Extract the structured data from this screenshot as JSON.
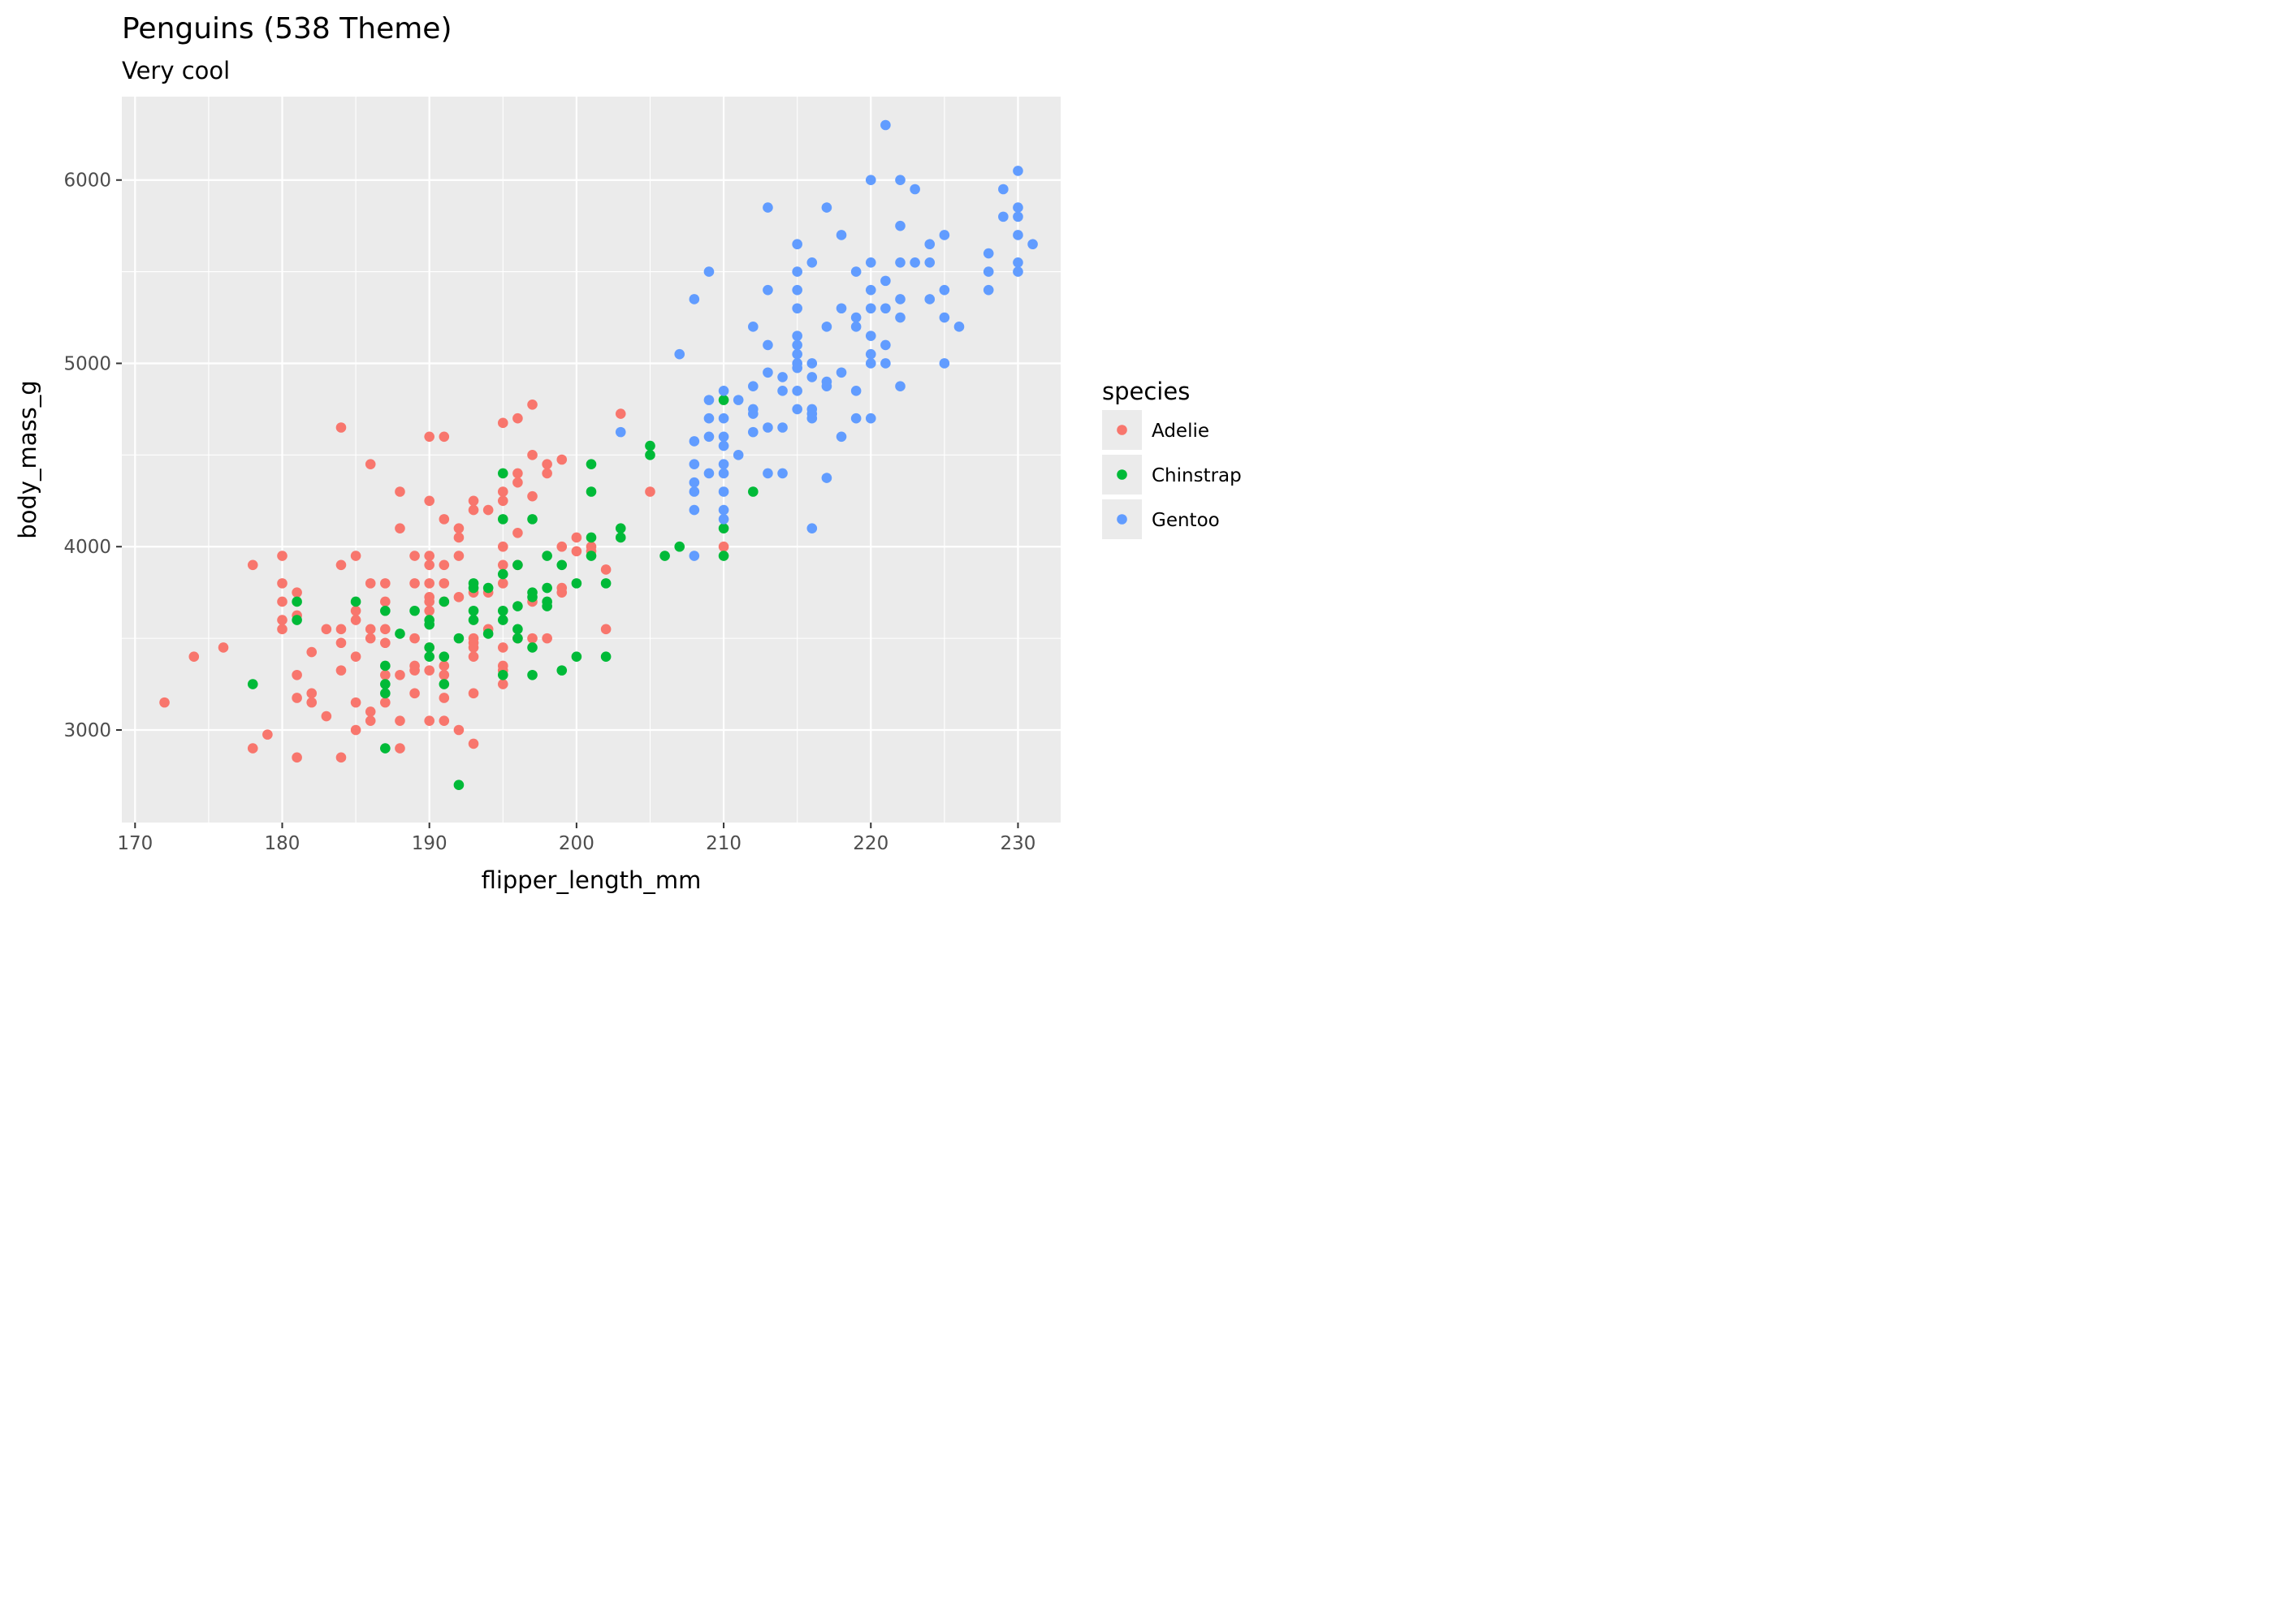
{
  "title": "Penguins (538 Theme)",
  "subtitle": "Very cool",
  "chart_data": {
    "type": "scatter",
    "title": "Penguins (538 Theme)",
    "subtitle": "Very cool",
    "xlabel": "flipper_length_mm",
    "ylabel": "body_mass_g",
    "xlim": [
      169.1,
      232.9
    ],
    "ylim": [
      2495,
      6455
    ],
    "xticks": [
      170,
      180,
      190,
      200,
      210,
      220,
      230
    ],
    "yticks": [
      3000,
      4000,
      5000,
      6000
    ],
    "x_minor_ticks": [
      175,
      185,
      195,
      205,
      215,
      225
    ],
    "y_minor_ticks": [
      3500,
      4500,
      5500
    ],
    "grid": true,
    "legend": {
      "title": "species",
      "position": "right"
    },
    "series": [
      {
        "name": "Adelie",
        "color": "#F8766D",
        "points": [
          [
            172,
            3150
          ],
          [
            174,
            3400
          ],
          [
            176,
            3450
          ],
          [
            178,
            3900
          ],
          [
            178,
            2900
          ],
          [
            179,
            2975
          ],
          [
            180,
            3950
          ],
          [
            180,
            3800
          ],
          [
            180,
            3700
          ],
          [
            180,
            3600
          ],
          [
            180,
            3550
          ],
          [
            181,
            3750
          ],
          [
            181,
            3625
          ],
          [
            181,
            3300
          ],
          [
            181,
            3175
          ],
          [
            181,
            2850
          ],
          [
            182,
            3425
          ],
          [
            182,
            3200
          ],
          [
            182,
            3150
          ],
          [
            183,
            3550
          ],
          [
            183,
            3075
          ],
          [
            184,
            4650
          ],
          [
            184,
            3900
          ],
          [
            184,
            3550
          ],
          [
            184,
            3475
          ],
          [
            184,
            3325
          ],
          [
            184,
            2850
          ],
          [
            185,
            3950
          ],
          [
            185,
            3650
          ],
          [
            185,
            3600
          ],
          [
            185,
            3400
          ],
          [
            185,
            3150
          ],
          [
            185,
            3000
          ],
          [
            186,
            4450
          ],
          [
            186,
            3800
          ],
          [
            186,
            3550
          ],
          [
            186,
            3500
          ],
          [
            186,
            3100
          ],
          [
            186,
            3050
          ],
          [
            187,
            3800
          ],
          [
            187,
            3700
          ],
          [
            187,
            3550
          ],
          [
            187,
            3475
          ],
          [
            187,
            3300
          ],
          [
            187,
            3150
          ],
          [
            188,
            4300
          ],
          [
            188,
            4100
          ],
          [
            188,
            3300
          ],
          [
            188,
            3050
          ],
          [
            188,
            2900
          ],
          [
            189,
            3950
          ],
          [
            189,
            3800
          ],
          [
            189,
            3500
          ],
          [
            189,
            3350
          ],
          [
            189,
            3325
          ],
          [
            189,
            3200
          ],
          [
            190,
            4600
          ],
          [
            190,
            4250
          ],
          [
            190,
            3950
          ],
          [
            190,
            3900
          ],
          [
            190,
            3800
          ],
          [
            190,
            3725
          ],
          [
            190,
            3700
          ],
          [
            190,
            3650
          ],
          [
            190,
            3450
          ],
          [
            190,
            3325
          ],
          [
            190,
            3050
          ],
          [
            191,
            4600
          ],
          [
            191,
            4150
          ],
          [
            191,
            3900
          ],
          [
            191,
            3800
          ],
          [
            191,
            3700
          ],
          [
            191,
            3350
          ],
          [
            191,
            3300
          ],
          [
            191,
            3175
          ],
          [
            191,
            3050
          ],
          [
            192,
            4100
          ],
          [
            192,
            4050
          ],
          [
            192,
            3950
          ],
          [
            192,
            3725
          ],
          [
            192,
            3000
          ],
          [
            193,
            4250
          ],
          [
            193,
            4200
          ],
          [
            193,
            3750
          ],
          [
            193,
            3500
          ],
          [
            193,
            3475
          ],
          [
            193,
            3450
          ],
          [
            193,
            3400
          ],
          [
            193,
            3200
          ],
          [
            193,
            2925
          ],
          [
            194,
            4200
          ],
          [
            194,
            3750
          ],
          [
            194,
            3550
          ],
          [
            195,
            4675
          ],
          [
            195,
            4300
          ],
          [
            195,
            4250
          ],
          [
            195,
            4000
          ],
          [
            195,
            3900
          ],
          [
            195,
            3800
          ],
          [
            195,
            3450
          ],
          [
            195,
            3350
          ],
          [
            195,
            3325
          ],
          [
            195,
            3250
          ],
          [
            196,
            4700
          ],
          [
            196,
            4400
          ],
          [
            196,
            4350
          ],
          [
            196,
            4075
          ],
          [
            196,
            3900
          ],
          [
            196,
            3500
          ],
          [
            197,
            4775
          ],
          [
            197,
            4500
          ],
          [
            197,
            4275
          ],
          [
            197,
            3700
          ],
          [
            197,
            3500
          ],
          [
            198,
            4450
          ],
          [
            198,
            4400
          ],
          [
            198,
            3500
          ],
          [
            199,
            4475
          ],
          [
            199,
            4000
          ],
          [
            199,
            3775
          ],
          [
            199,
            3750
          ],
          [
            200,
            4050
          ],
          [
            200,
            3975
          ],
          [
            201,
            4000
          ],
          [
            201,
            3975
          ],
          [
            202,
            3875
          ],
          [
            202,
            3550
          ],
          [
            203,
            4725
          ],
          [
            205,
            4300
          ],
          [
            210,
            4000
          ]
        ]
      },
      {
        "name": "Chinstrap",
        "color": "#00BA38",
        "points": [
          [
            178,
            3250
          ],
          [
            181,
            3700
          ],
          [
            181,
            3600
          ],
          [
            185,
            3700
          ],
          [
            187,
            3650
          ],
          [
            187,
            3350
          ],
          [
            187,
            3250
          ],
          [
            187,
            3200
          ],
          [
            187,
            2900
          ],
          [
            188,
            3525
          ],
          [
            189,
            3650
          ],
          [
            190,
            3600
          ],
          [
            190,
            3575
          ],
          [
            190,
            3450
          ],
          [
            190,
            3400
          ],
          [
            191,
            3700
          ],
          [
            191,
            3400
          ],
          [
            191,
            3250
          ],
          [
            192,
            3500
          ],
          [
            192,
            2700
          ],
          [
            193,
            3800
          ],
          [
            193,
            3775
          ],
          [
            193,
            3650
          ],
          [
            193,
            3600
          ],
          [
            194,
            3775
          ],
          [
            194,
            3525
          ],
          [
            195,
            4400
          ],
          [
            195,
            4150
          ],
          [
            195,
            3850
          ],
          [
            195,
            3650
          ],
          [
            195,
            3600
          ],
          [
            195,
            3300
          ],
          [
            196,
            3900
          ],
          [
            196,
            3675
          ],
          [
            196,
            3550
          ],
          [
            196,
            3500
          ],
          [
            197,
            4150
          ],
          [
            197,
            3750
          ],
          [
            197,
            3725
          ],
          [
            197,
            3450
          ],
          [
            197,
            3300
          ],
          [
            198,
            3950
          ],
          [
            198,
            3775
          ],
          [
            198,
            3700
          ],
          [
            198,
            3675
          ],
          [
            199,
            3900
          ],
          [
            199,
            3325
          ],
          [
            200,
            3800
          ],
          [
            200,
            3400
          ],
          [
            201,
            4450
          ],
          [
            201,
            4300
          ],
          [
            201,
            4050
          ],
          [
            201,
            3950
          ],
          [
            202,
            3800
          ],
          [
            202,
            3400
          ],
          [
            203,
            4100
          ],
          [
            203,
            4050
          ],
          [
            205,
            4550
          ],
          [
            205,
            4500
          ],
          [
            206,
            3950
          ],
          [
            207,
            4000
          ],
          [
            210,
            4800
          ],
          [
            210,
            4100
          ],
          [
            210,
            3950
          ],
          [
            212,
            4300
          ]
        ]
      },
      {
        "name": "Gentoo",
        "color": "#619CFF",
        "points": [
          [
            203,
            4625
          ],
          [
            207,
            5050
          ],
          [
            208,
            5350
          ],
          [
            208,
            4575
          ],
          [
            208,
            4450
          ],
          [
            208,
            4350
          ],
          [
            208,
            4300
          ],
          [
            208,
            4200
          ],
          [
            208,
            3950
          ],
          [
            209,
            5500
          ],
          [
            209,
            4800
          ],
          [
            209,
            4700
          ],
          [
            209,
            4600
          ],
          [
            209,
            4400
          ],
          [
            210,
            4850
          ],
          [
            210,
            4700
          ],
          [
            210,
            4600
          ],
          [
            210,
            4550
          ],
          [
            210,
            4450
          ],
          [
            210,
            4400
          ],
          [
            210,
            4300
          ],
          [
            210,
            4200
          ],
          [
            210,
            4150
          ],
          [
            211,
            4800
          ],
          [
            211,
            4500
          ],
          [
            212,
            5200
          ],
          [
            212,
            4875
          ],
          [
            212,
            4750
          ],
          [
            212,
            4725
          ],
          [
            212,
            4625
          ],
          [
            213,
            5850
          ],
          [
            213,
            5400
          ],
          [
            213,
            5100
          ],
          [
            213,
            4950
          ],
          [
            213,
            4650
          ],
          [
            213,
            4400
          ],
          [
            214,
            4925
          ],
          [
            214,
            4850
          ],
          [
            214,
            4650
          ],
          [
            214,
            4400
          ],
          [
            215,
            5650
          ],
          [
            215,
            5500
          ],
          [
            215,
            5400
          ],
          [
            215,
            5300
          ],
          [
            215,
            5150
          ],
          [
            215,
            5100
          ],
          [
            215,
            5050
          ],
          [
            215,
            5000
          ],
          [
            215,
            4975
          ],
          [
            215,
            4850
          ],
          [
            215,
            4750
          ],
          [
            216,
            5550
          ],
          [
            216,
            5000
          ],
          [
            216,
            4925
          ],
          [
            216,
            4750
          ],
          [
            216,
            4725
          ],
          [
            216,
            4700
          ],
          [
            216,
            4100
          ],
          [
            217,
            5850
          ],
          [
            217,
            5200
          ],
          [
            217,
            4900
          ],
          [
            217,
            4875
          ],
          [
            217,
            4375
          ],
          [
            218,
            5700
          ],
          [
            218,
            5300
          ],
          [
            218,
            4950
          ],
          [
            218,
            4600
          ],
          [
            219,
            5500
          ],
          [
            219,
            5250
          ],
          [
            219,
            5200
          ],
          [
            219,
            4850
          ],
          [
            219,
            4700
          ],
          [
            220,
            6000
          ],
          [
            220,
            5550
          ],
          [
            220,
            5400
          ],
          [
            220,
            5300
          ],
          [
            220,
            5150
          ],
          [
            220,
            5050
          ],
          [
            220,
            5000
          ],
          [
            220,
            4700
          ],
          [
            221,
            6300
          ],
          [
            221,
            5450
          ],
          [
            221,
            5300
          ],
          [
            221,
            5100
          ],
          [
            221,
            5000
          ],
          [
            222,
            6000
          ],
          [
            222,
            5750
          ],
          [
            222,
            5550
          ],
          [
            222,
            5350
          ],
          [
            222,
            5250
          ],
          [
            222,
            4875
          ],
          [
            223,
            5950
          ],
          [
            223,
            5550
          ],
          [
            224,
            5650
          ],
          [
            224,
            5550
          ],
          [
            224,
            5350
          ],
          [
            225,
            5700
          ],
          [
            225,
            5400
          ],
          [
            225,
            5250
          ],
          [
            225,
            5000
          ],
          [
            226,
            5200
          ],
          [
            228,
            5600
          ],
          [
            228,
            5500
          ],
          [
            228,
            5400
          ],
          [
            229,
            5950
          ],
          [
            229,
            5800
          ],
          [
            230,
            6050
          ],
          [
            230,
            5850
          ],
          [
            230,
            5800
          ],
          [
            230,
            5700
          ],
          [
            230,
            5550
          ],
          [
            230,
            5500
          ],
          [
            231,
            5650
          ]
        ]
      }
    ]
  }
}
